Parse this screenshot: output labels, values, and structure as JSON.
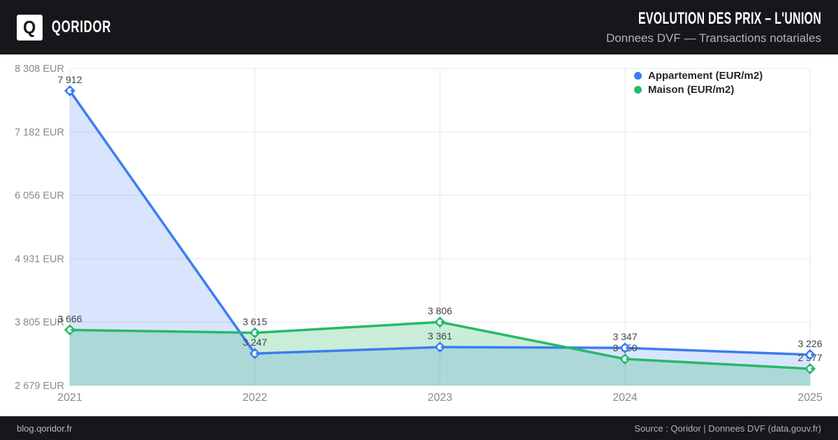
{
  "header": {
    "logo_letter": "Q",
    "brand": "QORIDOR",
    "title": "EVOLUTION DES PRIX – L'UNION",
    "subtitle": "Donnees DVF — Transactions notariales"
  },
  "footer": {
    "left": "blog.qoridor.fr",
    "right": "Source : Qoridor | Donnees DVF (data.gouv.fr)"
  },
  "colors": {
    "header_bg": "#17161a",
    "grid": "#e7e7e9",
    "axis_text": "#8a8a8e",
    "data_label_text": "#40434a",
    "appartement_blue": "#3b7df0",
    "maison_green": "#26b969"
  },
  "chart_data": {
    "type": "line",
    "title": "EVOLUTION DES PRIX – L'UNION",
    "x": [
      "2021",
      "2022",
      "2023",
      "2024",
      "2025"
    ],
    "series": [
      {
        "name": "Appartement (EUR/m2)",
        "color": "#3b7df0",
        "fill": "rgba(59,125,240,0.20)",
        "values": [
          7912,
          3247,
          3361,
          3347,
          3226
        ]
      },
      {
        "name": "Maison (EUR/m2)",
        "color": "#26b969",
        "fill": "rgba(38,185,105,0.25)",
        "values": [
          3666,
          3615,
          3806,
          3150,
          2977
        ]
      }
    ],
    "y_ticks": [
      {
        "value": 2679,
        "label": "2 679 EUR"
      },
      {
        "value": 3805,
        "label": "3 805 EUR"
      },
      {
        "value": 4931,
        "label": "4 931 EUR"
      },
      {
        "value": 6056,
        "label": "6 056 EUR"
      },
      {
        "value": 7182,
        "label": "7 182 EUR"
      },
      {
        "value": 8308,
        "label": "8 308 EUR"
      }
    ],
    "ylim": [
      2679,
      8308
    ],
    "grid": true,
    "legend_position": "top-right",
    "area_fill": true,
    "point_labels": true
  }
}
